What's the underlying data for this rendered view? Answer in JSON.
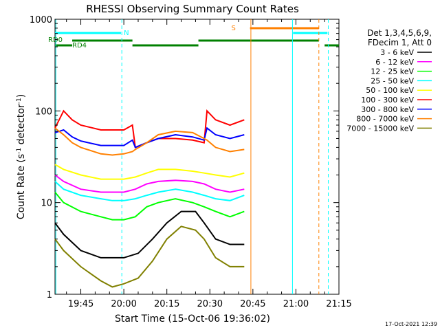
{
  "chart_data": {
    "type": "line",
    "title": "RHESSI Observing Summary Count Rates",
    "xlabel": "Start Time (15-Oct-06 19:36:02)",
    "ylabel": "Count Rate (s⁻¹ detector⁻¹)",
    "ylabel_base": "Count Rate (s",
    "ylabel_sup1": "-1",
    "ylabel_mid": " detector",
    "ylabel_sup2": "-1",
    "ylabel_end": ")",
    "yscale": "log",
    "ylim": [
      1,
      1000
    ],
    "xlim_minutes": [
      36,
      135
    ],
    "x_tick_labels": [
      "19:45",
      "20:00",
      "20:15",
      "20:30",
      "20:45",
      "21:00",
      "21:15"
    ],
    "x_tick_minutes": [
      45,
      60,
      75,
      90,
      105,
      120,
      135
    ],
    "y_tick_labels": [
      "1",
      "10",
      "100",
      "1000"
    ],
    "y_tick_values": [
      1,
      10,
      100,
      1000
    ],
    "legend_header": [
      "Det 1,3,4,5,6,9,",
      "FDecim 1, Att 0"
    ],
    "series": [
      {
        "name": "3 - 6 keV",
        "color": "#000000",
        "x": [
          36,
          39,
          45,
          52,
          56,
          60,
          65,
          70,
          75,
          80,
          85,
          88,
          92,
          97,
          102
        ],
        "y": [
          6,
          4.5,
          3,
          2.5,
          2.5,
          2.5,
          2.8,
          4,
          6,
          8,
          8,
          6,
          4,
          3.5,
          3.5
        ]
      },
      {
        "name": "6 - 12 keV",
        "color": "#ff00ff",
        "x": [
          36,
          39,
          45,
          52,
          56,
          60,
          64,
          68,
          72,
          78,
          84,
          88,
          92,
          97,
          102
        ],
        "y": [
          20,
          17,
          14,
          13,
          13,
          13,
          14,
          16,
          17,
          17.5,
          17,
          16,
          14,
          13,
          14
        ]
      },
      {
        "name": "12 - 25 keV",
        "color": "#00ff00",
        "x": [
          36,
          39,
          45,
          52,
          56,
          60,
          64,
          68,
          72,
          78,
          84,
          88,
          92,
          97,
          102
        ],
        "y": [
          13,
          10,
          8,
          7,
          6.5,
          6.5,
          7,
          9,
          10,
          11,
          10,
          9,
          8,
          7,
          8
        ]
      },
      {
        "name": "25 - 50 keV",
        "color": "#00ffff",
        "x": [
          36,
          39,
          45,
          52,
          56,
          60,
          64,
          68,
          72,
          78,
          84,
          88,
          92,
          97,
          102
        ],
        "y": [
          17,
          14,
          12,
          11,
          10.5,
          10.5,
          11,
          12,
          13,
          14,
          13,
          12,
          11,
          10.5,
          12
        ]
      },
      {
        "name": "50 - 100 keV",
        "color": "#ffff00",
        "x": [
          36,
          39,
          45,
          52,
          56,
          60,
          64,
          68,
          72,
          78,
          84,
          88,
          92,
          97,
          102
        ],
        "y": [
          26,
          23,
          20,
          18,
          18,
          18,
          19,
          21,
          23,
          23,
          22,
          21,
          20,
          19,
          21
        ]
      },
      {
        "name": "100 - 300 keV",
        "color": "#ff0000",
        "x": [
          36,
          39,
          42,
          45,
          52,
          56,
          60,
          63,
          64,
          68,
          72,
          78,
          84,
          88,
          89,
          92,
          97,
          102
        ],
        "y": [
          65,
          100,
          80,
          70,
          62,
          62,
          62,
          70,
          40,
          45,
          50,
          50,
          48,
          45,
          100,
          80,
          70,
          80
        ]
      },
      {
        "name": "300 - 800 keV",
        "color": "#0000ff",
        "x": [
          36,
          39,
          42,
          45,
          52,
          56,
          60,
          63,
          64,
          68,
          72,
          78,
          84,
          88,
          89,
          92,
          97,
          102
        ],
        "y": [
          58,
          62,
          52,
          47,
          42,
          42,
          42,
          48,
          40,
          45,
          50,
          55,
          52,
          48,
          65,
          55,
          50,
          55
        ]
      },
      {
        "name": "800 - 7000 keV",
        "color": "#ff8000",
        "x": [
          36,
          39,
          42,
          45,
          52,
          56,
          60,
          63,
          64,
          68,
          72,
          78,
          84,
          88,
          89,
          92,
          97,
          102
        ],
        "y": [
          65,
          55,
          45,
          40,
          34,
          33,
          34,
          36,
          38,
          45,
          55,
          60,
          58,
          50,
          48,
          40,
          36,
          38
        ]
      },
      {
        "name": "7000 - 15000 keV",
        "color": "#808000",
        "x": [
          36,
          39,
          45,
          52,
          56,
          60,
          65,
          70,
          75,
          80,
          85,
          88,
          92,
          97,
          102
        ],
        "y": [
          4,
          3,
          2,
          1.4,
          1.2,
          1.3,
          1.5,
          2.3,
          4,
          5.5,
          5,
          4,
          2.5,
          2,
          2
        ]
      }
    ],
    "flag_labels": {
      "n": "N",
      "s": "S",
      "rd0": "RD0",
      "rd4": "RD4"
    },
    "colors": {
      "flag_n": "#00ffff",
      "flag_s": "#ff8000",
      "flag_rd": "#008000",
      "axis": "#000000"
    }
  },
  "footer_date": "17-Oct-2021 12:39"
}
